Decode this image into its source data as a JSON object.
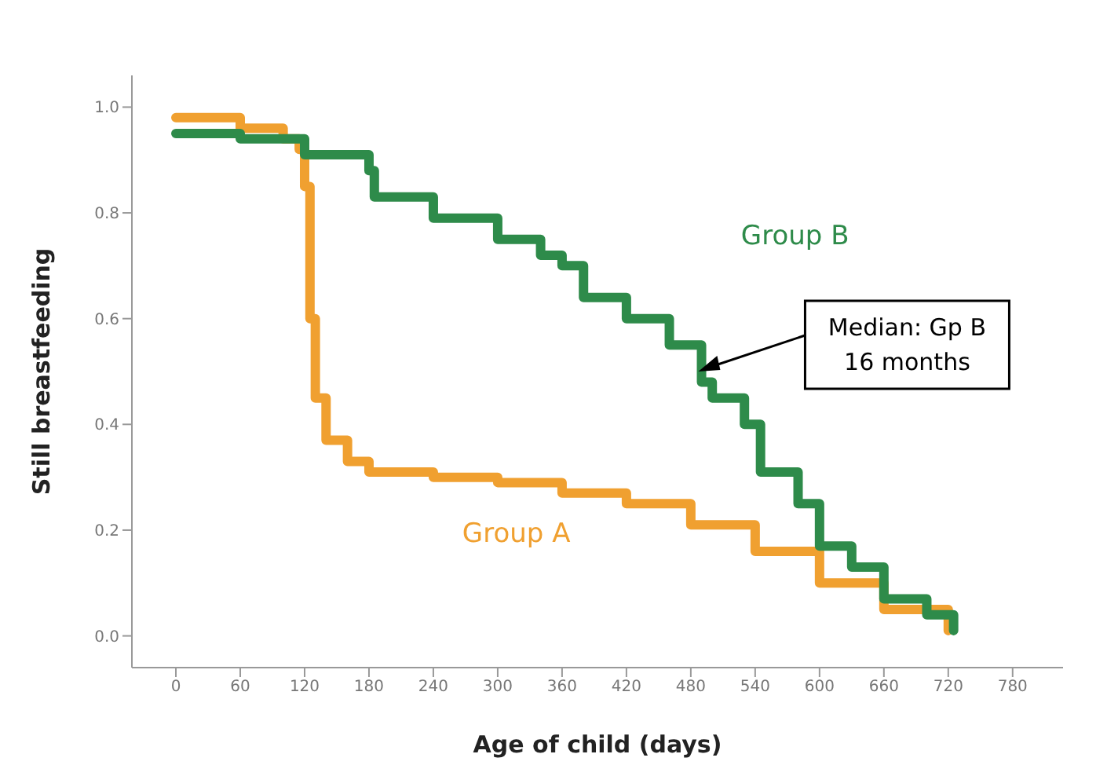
{
  "chart_data": {
    "type": "step",
    "xlabel": "Age of child (days)",
    "ylabel": "Still breastfeeding",
    "xlim": [
      -41,
      827
    ],
    "xticks": [
      0,
      60,
      120,
      180,
      240,
      300,
      360,
      420,
      480,
      540,
      600,
      660,
      720,
      780
    ],
    "ylim": [
      -0.06,
      1.06
    ],
    "yticks": [
      {
        "value": 0,
        "label": "0.0"
      },
      0.2,
      0.4,
      0.6,
      0.8,
      {
        "value": 1,
        "label": "1.0"
      }
    ],
    "grid": false,
    "legend": false,
    "series": [
      {
        "name": "Group A",
        "color": "#f0a030",
        "x": [
          0,
          60,
          100,
          115,
          120,
          125,
          130,
          140,
          160,
          180,
          240,
          300,
          360,
          420,
          480,
          540,
          600,
          660,
          720
        ],
        "values": [
          0.98,
          0.96,
          0.94,
          0.92,
          0.85,
          0.6,
          0.45,
          0.37,
          0.33,
          0.31,
          0.3,
          0.29,
          0.27,
          0.25,
          0.21,
          0.16,
          0.1,
          0.05,
          0.01
        ]
      },
      {
        "name": "Group B",
        "color": "#2e8b4a",
        "x": [
          0,
          60,
          120,
          180,
          185,
          240,
          300,
          340,
          360,
          380,
          420,
          460,
          490,
          500,
          530,
          545,
          580,
          600,
          630,
          660,
          700,
          725
        ],
        "values": [
          0.95,
          0.94,
          0.91,
          0.88,
          0.83,
          0.79,
          0.75,
          0.72,
          0.7,
          0.64,
          0.6,
          0.55,
          0.48,
          0.45,
          0.4,
          0.31,
          0.25,
          0.17,
          0.13,
          0.07,
          0.04,
          0.01
        ]
      }
    ],
    "annotations": [
      {
        "text": "Median: Gp B\n16 months",
        "x": 487,
        "y": 0.5
      }
    ]
  }
}
